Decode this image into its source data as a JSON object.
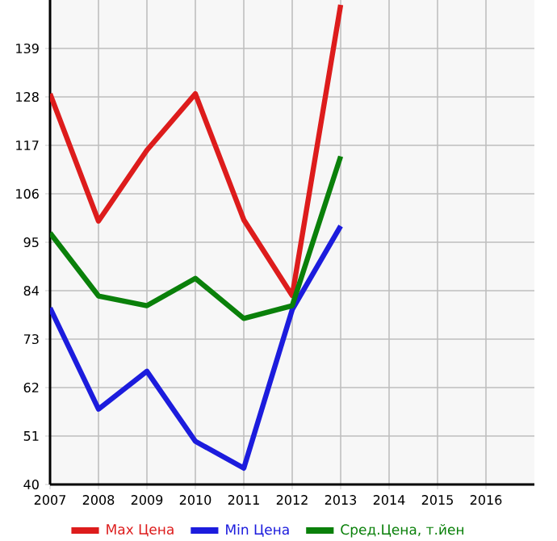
{
  "chart_data": {
    "type": "line",
    "x": [
      2007,
      2008,
      2009,
      2010,
      2011,
      2012,
      2013
    ],
    "series": [
      {
        "name": "Max Цена",
        "color": "#dd1c1c",
        "values": [
          128.7,
          99.8,
          115.9,
          128.7,
          100.1,
          82.9,
          148.9
        ]
      },
      {
        "name": "Min Цена",
        "color": "#1c1cdd",
        "values": [
          80.1,
          57.1,
          65.7,
          49.8,
          43.7,
          79.7,
          98.7
        ]
      },
      {
        "name": "Сред.Цена, т.йен",
        "color": "#0a800a",
        "values": [
          97.1,
          82.8,
          80.6,
          86.8,
          77.7,
          80.6,
          114.5
        ]
      }
    ],
    "xlim": [
      2007,
      2017
    ],
    "xticks": [
      2007,
      2008,
      2009,
      2010,
      2011,
      2012,
      2013,
      2014,
      2015,
      2016
    ],
    "ylim": [
      40,
      150
    ],
    "yticks": [
      40,
      51,
      62,
      73,
      84,
      95,
      106,
      117,
      128,
      139
    ],
    "grid": true,
    "legend": "bottom",
    "marker": "none",
    "line_style": "solid"
  }
}
